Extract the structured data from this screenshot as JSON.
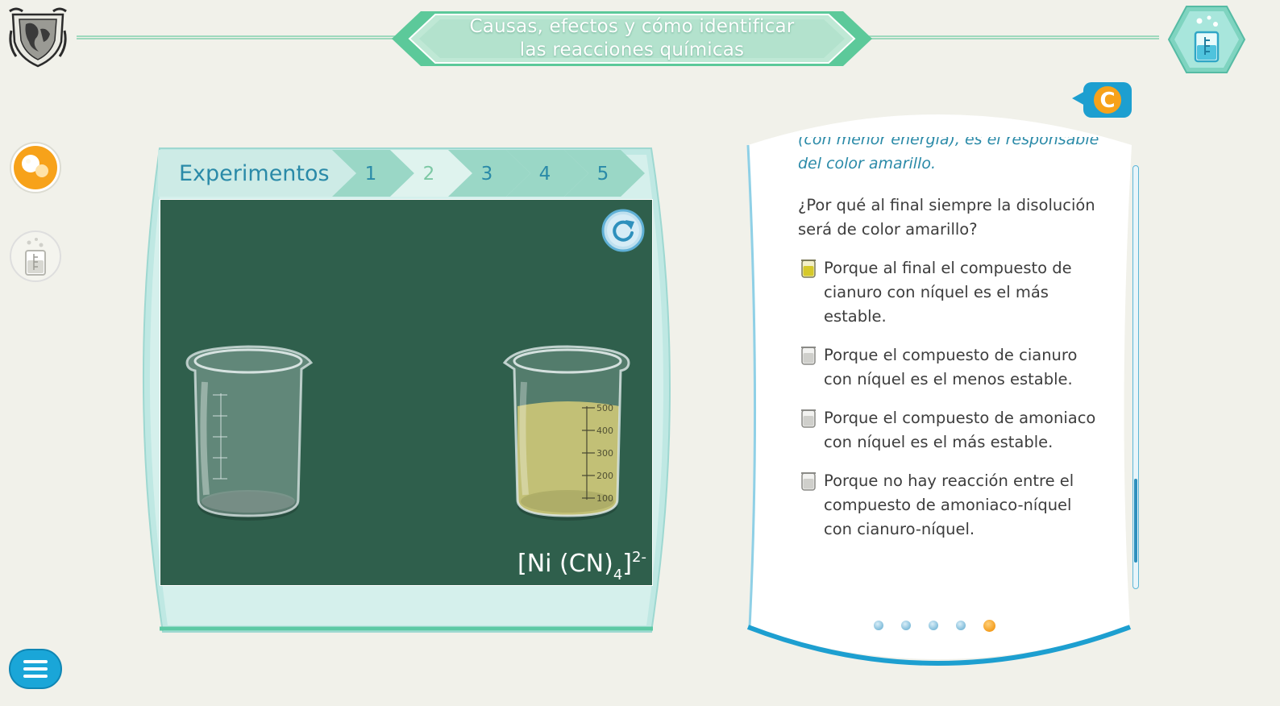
{
  "header": {
    "title_line1": "Causas, efectos y cómo identificar",
    "title_line2": "las reacciones químicas"
  },
  "experiments": {
    "label": "Experimentos",
    "tabs": [
      "1",
      "2",
      "3",
      "4",
      "5"
    ],
    "active_tab": "2",
    "formula": {
      "base": "[Ni (CN)",
      "subscript": "4",
      "close": "]",
      "superscript": "2-"
    },
    "beaker_scale": [
      "500",
      "400",
      "300",
      "200",
      "100"
    ],
    "right_beaker_fill_fraction": 0.78,
    "liquid_color": "#c9bf5a"
  },
  "card": {
    "badge_letter": "C",
    "intro_text": "(con menor energía), es el responsable del color amarillo.",
    "question": "¿Por qué al final siempre la disolución será de color amarillo?",
    "answers": [
      "Porque al final el compuesto de cianuro con níquel es el más estable.",
      "Porque el compuesto de cianuro con níquel es el menos estable.",
      "Porque el compuesto de amoniaco con níquel es el más estable.",
      "Porque no hay reacción entre el compuesto de amoniaco-níquel con cianuro-níquel."
    ],
    "selected_answer_index": 0,
    "page_count": 5,
    "current_page": 5
  },
  "colors": {
    "accent_teal": "#2a8aa8",
    "mint": "#7cc8a4",
    "stage_green": "#2f5f4c",
    "highlight_orange": "#f39a18"
  }
}
